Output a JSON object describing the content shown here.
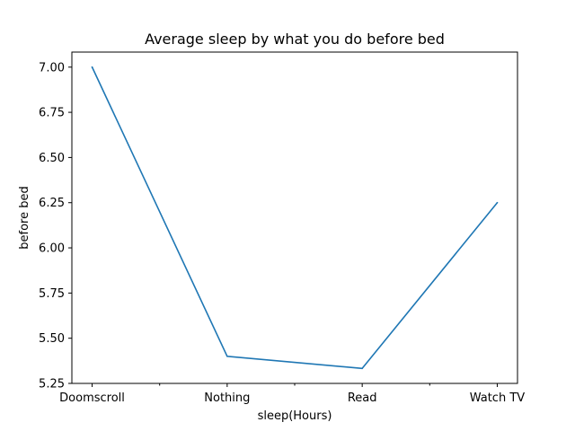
{
  "chart_data": {
    "type": "line",
    "title": "Average sleep by what you do before bed",
    "xlabel": "sleep(Hours)",
    "ylabel": "before bed",
    "categories": [
      "Doomscroll",
      "Nothing",
      "Read",
      "Watch TV"
    ],
    "series": [
      {
        "values": [
          7.0,
          5.4,
          5.333,
          6.25
        ],
        "color": "#1f77b4"
      }
    ],
    "x_minor_ticks": [
      0.5,
      1.5,
      2.5
    ],
    "yticks": [
      5.25,
      5.5,
      5.75,
      6.0,
      6.25,
      6.5,
      6.75,
      7.0
    ],
    "ytick_labels": [
      "5.25",
      "5.50",
      "5.75",
      "6.00",
      "6.25",
      "6.50",
      "6.75",
      "7.00"
    ],
    "ylim": [
      5.25,
      7.0833
    ],
    "xlim": [
      -0.15,
      3.15
    ],
    "grid": false,
    "legend": "none"
  }
}
